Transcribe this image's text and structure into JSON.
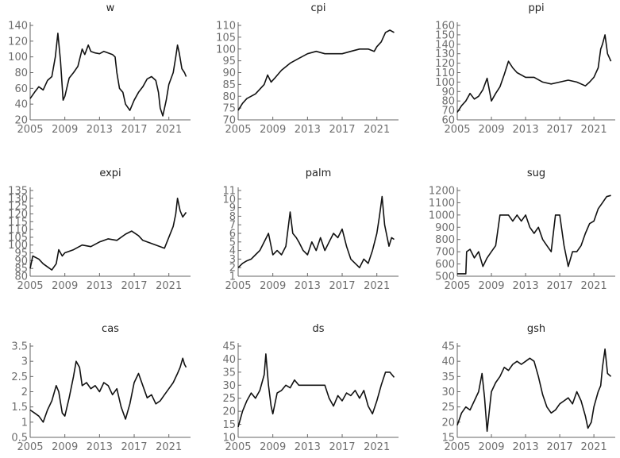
{
  "chart_data": [
    {
      "type": "line",
      "title": "w",
      "ylim": [
        20,
        140
      ],
      "yticks": [
        20,
        40,
        60,
        80,
        100,
        120,
        140
      ],
      "xlim": [
        2005,
        2023.5
      ],
      "xticks": [
        2005,
        2009,
        2013,
        2017,
        2021
      ],
      "series": [
        {
          "x": [
            2005,
            2005.5,
            2006,
            2006.5,
            2007,
            2007.5,
            2007.9,
            2008.2,
            2008.5,
            2008.8,
            2009,
            2009.5,
            2010,
            2010.5,
            2011,
            2011.3,
            2011.7,
            2012,
            2012.5,
            2013,
            2013.5,
            2014,
            2014.5,
            2014.8,
            2015,
            2015.3,
            2015.7,
            2016,
            2016.5,
            2017,
            2017.5,
            2018,
            2018.5,
            2019,
            2019.5,
            2019.8,
            2020,
            2020.3,
            2020.7,
            2021,
            2021.5,
            2021.8,
            2022,
            2022.2,
            2022.5,
            2022.8,
            2023
          ],
          "y": [
            47,
            55,
            62,
            58,
            70,
            75,
            100,
            130,
            95,
            45,
            50,
            73,
            80,
            88,
            110,
            103,
            115,
            107,
            105,
            104,
            107,
            105,
            103,
            100,
            80,
            60,
            55,
            40,
            32,
            45,
            55,
            62,
            72,
            75,
            70,
            55,
            35,
            25,
            45,
            65,
            80,
            100,
            115,
            105,
            85,
            80,
            75
          ]
        }
      ]
    },
    {
      "type": "line",
      "title": "cpi",
      "ylim": [
        70,
        110
      ],
      "yticks": [
        70,
        75,
        80,
        85,
        90,
        95,
        100,
        105,
        110
      ],
      "xlim": [
        2005,
        2023.5
      ],
      "xticks": [
        2005,
        2009,
        2013,
        2017,
        2021
      ],
      "series": [
        {
          "x": [
            2005,
            2005.5,
            2006,
            2007,
            2008,
            2008.4,
            2008.8,
            2009.3,
            2010,
            2011,
            2012,
            2013,
            2014,
            2015,
            2016,
            2017,
            2018,
            2019,
            2020,
            2020.7,
            2021,
            2021.5,
            2022,
            2022.5,
            2023
          ],
          "y": [
            74,
            77,
            79,
            81,
            85,
            89,
            86,
            88,
            91,
            94,
            96,
            98,
            99,
            98,
            98,
            98,
            99,
            100,
            100,
            99,
            101,
            103,
            107,
            108,
            107
          ]
        }
      ]
    },
    {
      "type": "line",
      "title": "ppi",
      "ylim": [
        60,
        160
      ],
      "yticks": [
        60,
        70,
        80,
        90,
        100,
        110,
        120,
        130,
        140,
        150,
        160
      ],
      "xlim": [
        2005,
        2023.5
      ],
      "xticks": [
        2005,
        2009,
        2013,
        2017,
        2021
      ],
      "series": [
        {
          "x": [
            2005,
            2005.5,
            2006,
            2006.5,
            2007,
            2007.5,
            2008,
            2008.5,
            2009,
            2009.5,
            2010,
            2010.5,
            2011,
            2011.5,
            2012,
            2013,
            2014,
            2015,
            2016,
            2017,
            2018,
            2019,
            2020,
            2020.5,
            2021,
            2021.5,
            2021.8,
            2022,
            2022.3,
            2022.6,
            2023
          ],
          "y": [
            68,
            75,
            80,
            88,
            82,
            85,
            92,
            104,
            80,
            88,
            95,
            108,
            122,
            115,
            110,
            105,
            105,
            100,
            98,
            100,
            102,
            100,
            96,
            100,
            105,
            115,
            135,
            140,
            150,
            130,
            122
          ]
        }
      ]
    },
    {
      "type": "line",
      "title": "expi",
      "ylim": [
        80,
        135
      ],
      "yticks": [
        80,
        85,
        90,
        95,
        100,
        105,
        110,
        115,
        120,
        125,
        130,
        135
      ],
      "xlim": [
        2005,
        2023.5
      ],
      "xticks": [
        2005,
        2009,
        2013,
        2017,
        2021
      ],
      "series": [
        {
          "x": [
            2005,
            2005.3,
            2006,
            2006.5,
            2007,
            2007.5,
            2008,
            2008.3,
            2008.7,
            2009,
            2010,
            2011,
            2012,
            2013,
            2014,
            2015,
            2016,
            2016.7,
            2017.5,
            2018,
            2019,
            2020,
            2020.5,
            2021,
            2021.5,
            2021.8,
            2022,
            2022.3,
            2022.6,
            2023
          ],
          "y": [
            85,
            93,
            91,
            88,
            86,
            84,
            88,
            97,
            93,
            95,
            97,
            100,
            99,
            102,
            104,
            103,
            107,
            109,
            106,
            103,
            101,
            99,
            98,
            105,
            112,
            120,
            130,
            122,
            118,
            121
          ]
        }
      ]
    },
    {
      "type": "line",
      "title": "palm",
      "ylim": [
        1,
        11
      ],
      "yticks": [
        1,
        2,
        3,
        4,
        5,
        6,
        7,
        8,
        9,
        10,
        11
      ],
      "xlim": [
        2005,
        2023.5
      ],
      "xticks": [
        2005,
        2009,
        2013,
        2017,
        2021
      ],
      "series": [
        {
          "x": [
            2005,
            2005.5,
            2006,
            2006.5,
            2007,
            2007.5,
            2008,
            2008.5,
            2009,
            2009.5,
            2010,
            2010.5,
            2011,
            2011.3,
            2011.7,
            2012,
            2012.5,
            2013,
            2013.5,
            2014,
            2014.5,
            2015,
            2015.5,
            2016,
            2016.5,
            2017,
            2017.5,
            2018,
            2018.5,
            2019,
            2019.5,
            2020,
            2020.5,
            2021,
            2021.3,
            2021.6,
            2021.9,
            2022.1,
            2022.4,
            2022.7,
            2023
          ],
          "y": [
            2,
            2.5,
            2.8,
            3,
            3.5,
            4,
            5,
            6,
            3.5,
            4,
            3.5,
            4.5,
            8.5,
            6,
            5.5,
            5,
            4,
            3.5,
            5,
            4,
            5.5,
            4,
            5,
            6,
            5.5,
            6.5,
            4.5,
            3,
            2.5,
            2,
            3,
            2.5,
            4,
            6,
            8,
            10.3,
            7,
            6,
            4.5,
            5.5,
            5.3
          ]
        }
      ]
    },
    {
      "type": "line",
      "title": "sug",
      "ylim": [
        500,
        1200
      ],
      "yticks": [
        500,
        600,
        700,
        800,
        900,
        1000,
        1100,
        1200
      ],
      "xlim": [
        2005,
        2023.5
      ],
      "xticks": [
        2005,
        2009,
        2013,
        2017,
        2021
      ],
      "series": [
        {
          "x": [
            2005,
            2006,
            2006.1,
            2006.5,
            2007,
            2007.5,
            2008,
            2008.5,
            2009,
            2009.5,
            2010,
            2011,
            2011.5,
            2012,
            2012.5,
            2013,
            2013.5,
            2014,
            2014.5,
            2015,
            2015.5,
            2016,
            2016.5,
            2017,
            2017.5,
            2018,
            2018.5,
            2019,
            2019.5,
            2020,
            2020.5,
            2021,
            2021.5,
            2022,
            2022.5,
            2023
          ],
          "y": [
            520,
            520,
            700,
            720,
            650,
            700,
            580,
            650,
            700,
            750,
            1000,
            1000,
            950,
            1000,
            950,
            1000,
            900,
            850,
            900,
            800,
            750,
            700,
            1000,
            1000,
            750,
            580,
            700,
            700,
            750,
            850,
            930,
            950,
            1050,
            1100,
            1150,
            1160
          ]
        }
      ]
    },
    {
      "type": "line",
      "title": "cas",
      "ylim": [
        0.5,
        3.5
      ],
      "yticks": [
        0.5,
        1,
        1.5,
        2,
        2.5,
        3,
        3.5
      ],
      "xlim": [
        2005,
        2023.5
      ],
      "xticks": [
        2005,
        2009,
        2013,
        2017,
        2021
      ],
      "series": [
        {
          "x": [
            2005,
            2005.5,
            2006,
            2006.5,
            2007,
            2007.5,
            2008,
            2008.3,
            2008.7,
            2009,
            2009.5,
            2010,
            2010.3,
            2010.7,
            2011,
            2011.5,
            2012,
            2012.5,
            2013,
            2013.5,
            2014,
            2014.5,
            2015,
            2015.5,
            2016,
            2016.5,
            2017,
            2017.5,
            2018,
            2018.5,
            2019,
            2019.5,
            2020,
            2020.5,
            2021,
            2021.5,
            2022,
            2022.3,
            2022.6,
            2022.8,
            2023
          ],
          "y": [
            1.4,
            1.3,
            1.2,
            1.0,
            1.4,
            1.7,
            2.2,
            2.0,
            1.3,
            1.2,
            1.8,
            2.5,
            3.0,
            2.8,
            2.2,
            2.3,
            2.1,
            2.2,
            2.0,
            2.3,
            2.2,
            1.9,
            2.1,
            1.5,
            1.1,
            1.6,
            2.3,
            2.6,
            2.2,
            1.8,
            1.9,
            1.6,
            1.7,
            1.9,
            2.1,
            2.3,
            2.6,
            2.8,
            3.1,
            2.9,
            2.8
          ]
        }
      ]
    },
    {
      "type": "line",
      "title": "ds",
      "ylim": [
        10,
        45
      ],
      "yticks": [
        10,
        15,
        20,
        25,
        30,
        35,
        40,
        45
      ],
      "xlim": [
        2005,
        2023.5
      ],
      "xticks": [
        2005,
        2009,
        2013,
        2017,
        2021
      ],
      "series": [
        {
          "x": [
            2005,
            2005.5,
            2006,
            2006.5,
            2007,
            2007.5,
            2008,
            2008.2,
            2008.5,
            2008.8,
            2009,
            2009.5,
            2010,
            2010.5,
            2011,
            2011.5,
            2012,
            2013,
            2014,
            2015,
            2015.5,
            2016,
            2016.5,
            2017,
            2017.5,
            2018,
            2018.5,
            2019,
            2019.5,
            2020,
            2020.5,
            2021,
            2021.5,
            2022,
            2022.5,
            2023
          ],
          "y": [
            14,
            20,
            24,
            27,
            25,
            28,
            34,
            42,
            30,
            22,
            19,
            27,
            28,
            30,
            29,
            32,
            30,
            30,
            30,
            30,
            25,
            22,
            26,
            24,
            27,
            26,
            28,
            25,
            28,
            22,
            19,
            24,
            30,
            35,
            35,
            33
          ]
        }
      ]
    },
    {
      "type": "line",
      "title": "gsh",
      "ylim": [
        15,
        45
      ],
      "yticks": [
        15,
        20,
        25,
        30,
        35,
        40,
        45
      ],
      "xlim": [
        2005,
        2023.5
      ],
      "xticks": [
        2005,
        2009,
        2013,
        2017,
        2021
      ],
      "series": [
        {
          "x": [
            2005,
            2005.5,
            2006,
            2006.5,
            2007,
            2007.5,
            2007.9,
            2008.2,
            2008.5,
            2008.8,
            2009,
            2009.5,
            2010,
            2010.5,
            2011,
            2011.5,
            2012,
            2012.5,
            2013,
            2013.5,
            2014,
            2014.5,
            2015,
            2015.5,
            2016,
            2016.5,
            2017,
            2017.5,
            2018,
            2018.5,
            2019,
            2019.5,
            2020,
            2020.3,
            2020.7,
            2021,
            2021.5,
            2021.8,
            2022,
            2022.3,
            2022.6,
            2023
          ],
          "y": [
            19,
            23,
            25,
            24,
            27,
            30,
            36,
            28,
            17,
            25,
            30,
            33,
            35,
            38,
            37,
            39,
            40,
            39,
            40,
            41,
            40,
            35,
            29,
            25,
            23,
            24,
            26,
            27,
            28,
            26,
            30,
            27,
            22,
            18,
            20,
            25,
            30,
            32,
            38,
            44,
            36,
            35
          ]
        }
      ]
    }
  ]
}
